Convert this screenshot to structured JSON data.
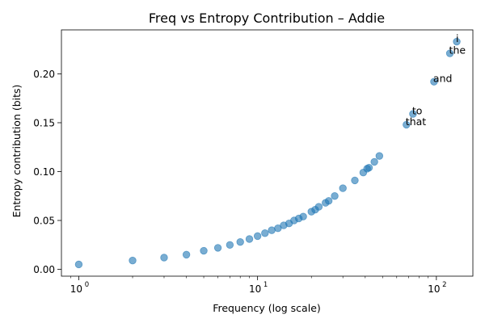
{
  "chart_data": {
    "type": "scatter",
    "title": "Freq vs Entropy Contribution – Addie",
    "xlabel": "Frequency (log scale)",
    "ylabel": "Entropy contribution (bits)",
    "x_scale": "log",
    "xlim": [
      0.8,
      160
    ],
    "ylim": [
      -0.007,
      0.245
    ],
    "x_ticks": [
      {
        "value": 1,
        "base": "10",
        "exp": "0"
      },
      {
        "value": 10,
        "base": "10",
        "exp": "1"
      },
      {
        "value": 100,
        "base": "10",
        "exp": "2"
      }
    ],
    "y_ticks": [
      {
        "value": 0.0,
        "label": "0.00"
      },
      {
        "value": 0.05,
        "label": "0.05"
      },
      {
        "value": 0.1,
        "label": "0.10"
      },
      {
        "value": 0.15,
        "label": "0.15"
      },
      {
        "value": 0.2,
        "label": "0.20"
      }
    ],
    "grid": false,
    "marker_color": "#1f77b4",
    "marker_alpha": 0.6,
    "series": [
      {
        "x": [
          1,
          2,
          3,
          4,
          5,
          6,
          7,
          8,
          9,
          10,
          11,
          12,
          13,
          14,
          15,
          16,
          17,
          18,
          20,
          21,
          22,
          24,
          25,
          27,
          30,
          35,
          39,
          41,
          42,
          45,
          48,
          68,
          74,
          97,
          119,
          130
        ],
        "y": [
          0.005,
          0.009,
          0.012,
          0.015,
          0.019,
          0.022,
          0.025,
          0.028,
          0.031,
          0.034,
          0.037,
          0.04,
          0.042,
          0.045,
          0.047,
          0.05,
          0.052,
          0.054,
          0.059,
          0.061,
          0.064,
          0.068,
          0.07,
          0.075,
          0.083,
          0.091,
          0.099,
          0.103,
          0.104,
          0.11,
          0.116,
          0.148,
          0.159,
          0.192,
          0.221,
          0.233
        ]
      }
    ],
    "annotations": [
      {
        "text": "i",
        "x": 130,
        "y": 0.233
      },
      {
        "text": "the",
        "x": 119,
        "y": 0.221
      },
      {
        "text": "and",
        "x": 97,
        "y": 0.192
      },
      {
        "text": "to",
        "x": 74,
        "y": 0.159
      },
      {
        "text": "that",
        "x": 68,
        "y": 0.148
      }
    ]
  }
}
